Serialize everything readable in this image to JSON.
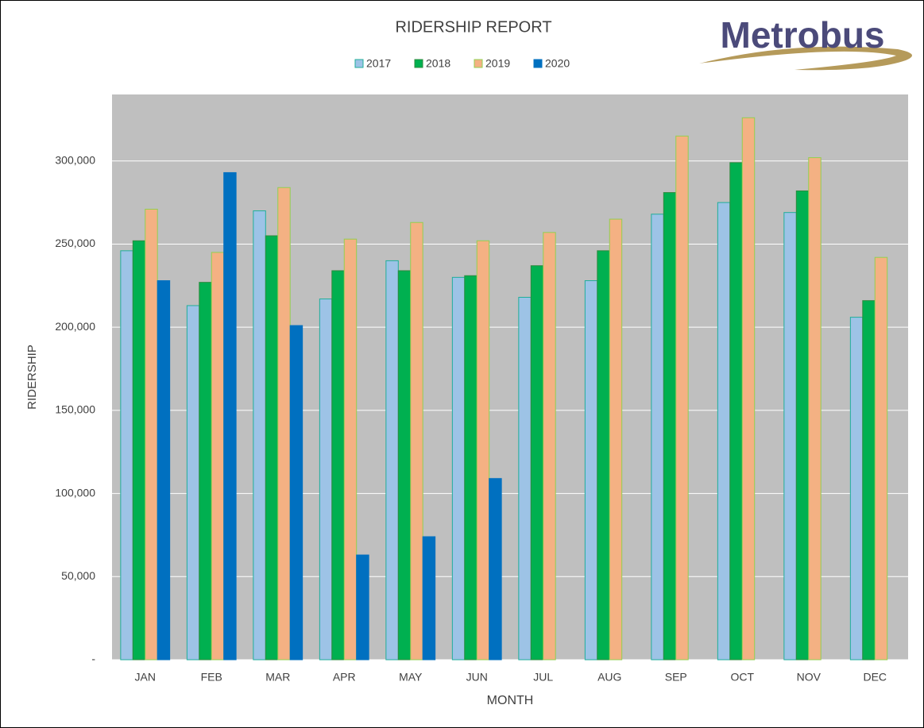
{
  "logo": "Metrobus",
  "chart_data": {
    "type": "bar",
    "title": "RIDERSHIP REPORT",
    "x_label": "MONTH",
    "y_label": "RIDERSHIP",
    "categories": [
      "JAN",
      "FEB",
      "MAR",
      "APR",
      "MAY",
      "JUN",
      "JUL",
      "AUG",
      "SEP",
      "OCT",
      "NOV",
      "DEC"
    ],
    "series": [
      {
        "name": "2017",
        "color": "#9dc3e6",
        "edgecolor": "#1fae9a",
        "values": [
          246000,
          213000,
          270000,
          217000,
          240000,
          230000,
          218000,
          228000,
          268000,
          275000,
          269000,
          206000
        ]
      },
      {
        "name": "2018",
        "color": "#00b050",
        "edgecolor": "#2e8b3e",
        "values": [
          252000,
          227000,
          255000,
          234000,
          234000,
          231000,
          237000,
          246000,
          281000,
          299000,
          282000,
          216000
        ]
      },
      {
        "name": "2019",
        "color": "#f4b183",
        "edgecolor": "#92d050",
        "values": [
          271000,
          245000,
          284000,
          253000,
          263000,
          252000,
          257000,
          265000,
          315000,
          326000,
          302000,
          242000
        ]
      },
      {
        "name": "2020",
        "color": "#0070c0",
        "edgecolor": "#0070c0",
        "values": [
          228000,
          293000,
          201000,
          63000,
          74000,
          109000,
          null,
          null,
          null,
          null,
          null,
          null
        ]
      }
    ],
    "ylim": [
      0,
      340000
    ],
    "yticks": [
      {
        "value": 0,
        "label": "-"
      },
      {
        "value": 50000,
        "label": "50,000"
      },
      {
        "value": 100000,
        "label": "100,000"
      },
      {
        "value": 150000,
        "label": "150,000"
      },
      {
        "value": 200000,
        "label": "200,000"
      },
      {
        "value": 250000,
        "label": "250,000"
      },
      {
        "value": 300000,
        "label": "300,000"
      }
    ],
    "grid": true,
    "legend": "top"
  }
}
